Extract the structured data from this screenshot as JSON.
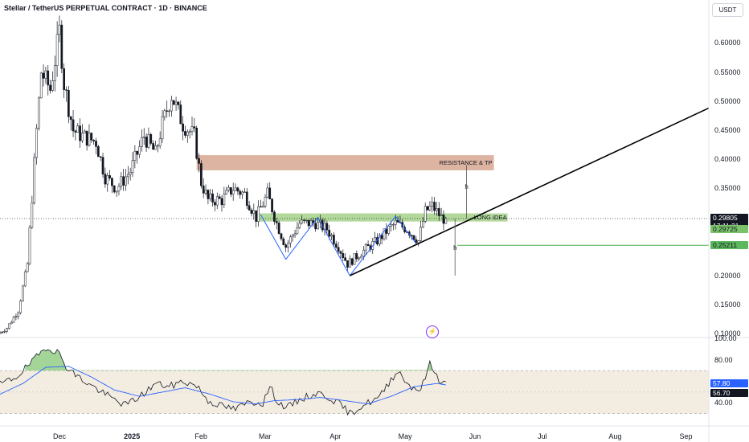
{
  "header": {
    "title": "Stellar / TetherUS PERPETUAL CONTRACT · 1D · BINANCE",
    "currency": "USDT"
  },
  "price_axis": {
    "ticks": [
      "0.60000",
      "0.55000",
      "0.50000",
      "0.45000",
      "0.40000",
      "0.35000",
      "0.30000",
      "0.25000",
      "0.20000",
      "0.15000",
      "0.10000"
    ]
  },
  "rsi_axis": {
    "ticks": [
      "100.00",
      "80.00",
      "40.00"
    ]
  },
  "price_tags": {
    "last_price": "0.29805",
    "countdown": "17:11:21",
    "long_level": "0.29725",
    "support_level": "0.25211",
    "rsi_value": "57.80",
    "rsi_ma_value": "56.70"
  },
  "annotations": {
    "resistance_label": "RESISTANCE & TP",
    "long_label": "LONG IDEA",
    "measure_mark": "h"
  },
  "x_axis": {
    "labels": [
      "Dec",
      "2025",
      "Feb",
      "Mar",
      "Apr",
      "May",
      "Jun",
      "Jul",
      "Aug",
      "Sep"
    ]
  },
  "colors": {
    "up_candle": "#ffffff",
    "down_candle": "#131722",
    "resistance_zone": "#d7a690",
    "long_zone": "#a5d28a",
    "support_line": "#4caf50",
    "pattern_line": "#2962ff",
    "trendline": "#000000",
    "rsi_line": "#131722",
    "rsi_ma": "#2962ff",
    "rsi_band": "#f3ece1",
    "rsi_overbought_fill": "#7bc36b",
    "rsi_tag": "#2962ff",
    "rsi_ma_tag": "#131722"
  },
  "chart_data": [
    {
      "type": "candlestick",
      "title": "Stellar / TetherUS PERPETUAL CONTRACT · 1D · BINANCE",
      "y_unit": "USDT",
      "ylim": [
        0.095,
        0.635
      ],
      "x_range": [
        "2024-11-05",
        "2025-09-11"
      ],
      "price_path": [
        [
          "2024-11-05",
          0.1
        ],
        [
          "2024-11-09",
          0.11
        ],
        [
          "2024-11-14",
          0.14
        ],
        [
          "2024-11-18",
          0.22
        ],
        [
          "2024-11-22",
          0.45
        ],
        [
          "2024-11-24",
          0.55
        ],
        [
          "2024-11-28",
          0.52
        ],
        [
          "2024-12-02",
          0.62
        ],
        [
          "2024-12-04",
          0.53
        ],
        [
          "2024-12-08",
          0.45
        ],
        [
          "2024-12-12",
          0.44
        ],
        [
          "2024-12-18",
          0.43
        ],
        [
          "2024-12-22",
          0.37
        ],
        [
          "2024-12-27",
          0.35
        ],
        [
          "2025-01-02",
          0.38
        ],
        [
          "2025-01-08",
          0.44
        ],
        [
          "2025-01-13",
          0.41
        ],
        [
          "2025-01-16",
          0.46
        ],
        [
          "2025-01-20",
          0.51
        ],
        [
          "2025-01-25",
          0.46
        ],
        [
          "2025-01-30",
          0.44
        ],
        [
          "2025-02-02",
          0.36
        ],
        [
          "2025-02-05",
          0.33
        ],
        [
          "2025-02-11",
          0.33
        ],
        [
          "2025-02-16",
          0.35
        ],
        [
          "2025-02-21",
          0.34
        ],
        [
          "2025-02-26",
          0.3
        ],
        [
          "2025-03-03",
          0.34
        ],
        [
          "2025-03-07",
          0.29
        ],
        [
          "2025-03-11",
          0.25
        ],
        [
          "2025-03-17",
          0.29
        ],
        [
          "2025-03-24",
          0.29
        ],
        [
          "2025-03-29",
          0.28
        ],
        [
          "2025-04-03",
          0.25
        ],
        [
          "2025-04-07",
          0.22
        ],
        [
          "2025-04-13",
          0.24
        ],
        [
          "2025-04-20",
          0.26
        ],
        [
          "2025-04-25",
          0.28
        ],
        [
          "2025-04-28",
          0.29
        ],
        [
          "2025-05-03",
          0.28
        ],
        [
          "2025-05-08",
          0.26
        ],
        [
          "2025-05-11",
          0.31
        ],
        [
          "2025-05-14",
          0.32
        ],
        [
          "2025-05-18",
          0.3
        ],
        [
          "2025-05-19",
          0.298
        ]
      ],
      "levels": {
        "resistance_zone": [
          0.381,
          0.407
        ],
        "long_zone": [
          0.293,
          0.307
        ],
        "last_price": 0.29805,
        "support": 0.25211
      },
      "pattern_lines": [
        [
          [
            "2025-02-27",
            0.305
          ],
          [
            "2025-03-10",
            0.228
          ]
        ],
        [
          [
            "2025-03-10",
            0.228
          ],
          [
            "2025-03-24",
            0.3
          ]
        ],
        [
          [
            "2025-03-24",
            0.3
          ],
          [
            "2025-04-07",
            0.2
          ]
        ],
        [
          [
            "2025-04-07",
            0.2
          ],
          [
            "2025-04-27",
            0.302
          ]
        ],
        [
          [
            "2025-04-27",
            0.302
          ],
          [
            "2025-05-06",
            0.255
          ]
        ]
      ],
      "trendline": [
        [
          "2025-04-07",
          0.2
        ],
        [
          "2025-09-11",
          0.488
        ]
      ],
      "measures": [
        [
          [
            "2025-05-28",
            0.298
          ],
          [
            "2025-05-28",
            0.39
          ]
        ],
        [
          [
            "2025-05-23",
            0.2
          ],
          [
            "2025-05-23",
            0.298
          ]
        ]
      ]
    },
    {
      "type": "line",
      "title": "RSI",
      "ylim": [
        20,
        100
      ],
      "band": [
        30,
        70
      ],
      "midline": 50,
      "series": [
        {
          "key": "rsi",
          "values_path": [
            [
              "2024-11-05",
              57
            ],
            [
              "2024-11-12",
              64
            ],
            [
              "2024-11-20",
              80
            ],
            [
              "2024-11-25",
              92
            ],
            [
              "2024-11-30",
              88
            ],
            [
              "2024-12-04",
              74
            ],
            [
              "2024-12-08",
              66
            ],
            [
              "2024-12-12",
              60
            ],
            [
              "2024-12-18",
              52
            ],
            [
              "2024-12-24",
              44
            ],
            [
              "2024-12-30",
              38
            ],
            [
              "2025-01-06",
              47
            ],
            [
              "2025-01-12",
              58
            ],
            [
              "2025-01-18",
              55
            ],
            [
              "2025-01-24",
              60
            ],
            [
              "2025-01-30",
              56
            ],
            [
              "2025-02-04",
              42
            ],
            [
              "2025-02-10",
              37
            ],
            [
              "2025-02-16",
              34
            ],
            [
              "2025-02-22",
              41
            ],
            [
              "2025-02-28",
              40
            ],
            [
              "2025-03-03",
              55
            ],
            [
              "2025-03-07",
              39
            ],
            [
              "2025-03-11",
              36
            ],
            [
              "2025-03-17",
              44
            ],
            [
              "2025-03-24",
              49
            ],
            [
              "2025-03-29",
              45
            ],
            [
              "2025-04-03",
              38
            ],
            [
              "2025-04-07",
              30
            ],
            [
              "2025-04-13",
              38
            ],
            [
              "2025-04-20",
              45
            ],
            [
              "2025-04-25",
              62
            ],
            [
              "2025-04-28",
              70
            ],
            [
              "2025-05-03",
              56
            ],
            [
              "2025-05-08",
              52
            ],
            [
              "2025-05-12",
              76
            ],
            [
              "2025-05-16",
              62
            ],
            [
              "2025-05-19",
              57.8
            ]
          ]
        },
        {
          "key": "rsi_ma",
          "values_path": [
            [
              "2024-11-05",
              48
            ],
            [
              "2024-11-15",
              58
            ],
            [
              "2024-11-25",
              73
            ],
            [
              "2024-12-05",
              74
            ],
            [
              "2024-12-15",
              64
            ],
            [
              "2024-12-25",
              52
            ],
            [
              "2025-01-05",
              46
            ],
            [
              "2025-01-15",
              50
            ],
            [
              "2025-01-25",
              54
            ],
            [
              "2025-02-05",
              48
            ],
            [
              "2025-02-15",
              41
            ],
            [
              "2025-02-25",
              39
            ],
            [
              "2025-03-05",
              42
            ],
            [
              "2025-03-15",
              43
            ],
            [
              "2025-03-25",
              45
            ],
            [
              "2025-04-05",
              42
            ],
            [
              "2025-04-15",
              39
            ],
            [
              "2025-04-25",
              46
            ],
            [
              "2025-05-05",
              55
            ],
            [
              "2025-05-15",
              58
            ],
            [
              "2025-05-19",
              56.7
            ]
          ]
        }
      ]
    }
  ]
}
